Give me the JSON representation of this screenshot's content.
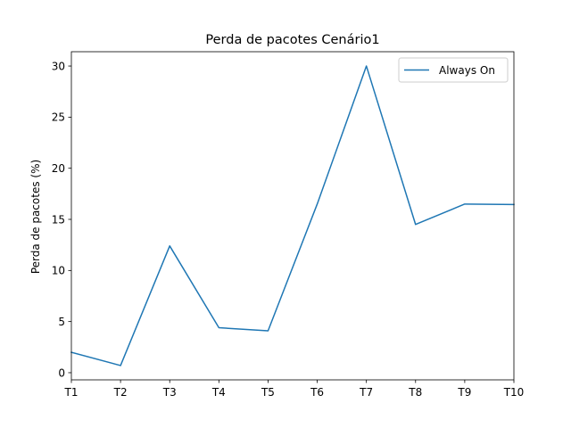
{
  "chart_data": {
    "type": "line",
    "title": "Perda de pacotes Cenário1",
    "xlabel": "",
    "ylabel": "Perda de pacotes (%)",
    "categories": [
      "T1",
      "T2",
      "T3",
      "T4",
      "T5",
      "T6",
      "T7",
      "T8",
      "T9",
      "T10"
    ],
    "ylim": [
      -0.7,
      31.4
    ],
    "yticks": [
      0,
      5,
      10,
      15,
      20,
      25,
      30
    ],
    "grid": false,
    "legend_position": "top-right",
    "series": [
      {
        "name": "Always On",
        "color": "#1f77b4",
        "values": [
          2.0,
          0.7,
          12.4,
          4.4,
          4.1,
          16.5,
          30.0,
          14.5,
          16.5,
          16.45
        ]
      }
    ]
  }
}
